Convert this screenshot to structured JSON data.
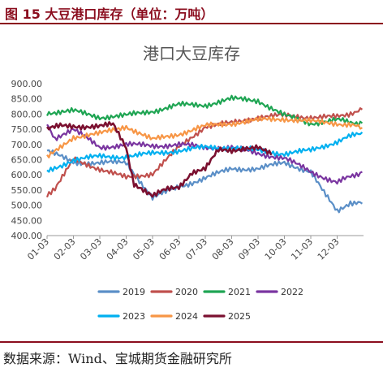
{
  "figure": {
    "title": "图 15 大豆港口库存（单位：万吨）",
    "source": "数据来源：Wind、宝城期货金融研究所"
  },
  "chart_data": {
    "type": "line",
    "title": "港口大豆库存",
    "ylim": [
      400,
      900
    ],
    "yticks": [
      "400.00",
      "450.00",
      "500.00",
      "550.00",
      "600.00",
      "650.00",
      "700.00",
      "750.00",
      "800.00",
      "850.00",
      "900.00"
    ],
    "xticks": [
      "01-03",
      "02-03",
      "03-03",
      "04-03",
      "05-03",
      "06-03",
      "07-03",
      "08-03",
      "09-03",
      "10-03",
      "11-03",
      "12-03"
    ],
    "x_start": "01-03",
    "x_end": "12-31",
    "grid": false,
    "legend_position": "bottom",
    "series": [
      {
        "name": "2019",
        "color": "#5b8fc7",
        "x": [
          0,
          1,
          2,
          3,
          4,
          5,
          6,
          7,
          8,
          9,
          10,
          10.5,
          11,
          11.5,
          11.95
        ],
        "values": [
          680,
          640,
          640,
          640,
          525,
          560,
          590,
          620,
          620,
          640,
          610,
          540,
          480,
          510,
          505
        ]
      },
      {
        "name": "2020",
        "color": "#c0504d",
        "x": [
          0,
          0.3,
          1,
          2,
          3,
          4,
          5,
          6,
          7,
          8,
          9,
          10,
          11,
          11.95
        ],
        "values": [
          535,
          550,
          650,
          620,
          590,
          605,
          690,
          760,
          770,
          790,
          795,
          790,
          790,
          815
        ]
      },
      {
        "name": "2021",
        "color": "#1fa553",
        "x": [
          0,
          1,
          2,
          3,
          4,
          5,
          6,
          7,
          8,
          9,
          10,
          11,
          11.95
        ],
        "values": [
          805,
          810,
          790,
          795,
          810,
          830,
          830,
          850,
          845,
          795,
          770,
          780,
          770
        ]
      },
      {
        "name": "2022",
        "color": "#7a35a0",
        "x": [
          0,
          0.3,
          1,
          2,
          3,
          4,
          5,
          6,
          7,
          8,
          9,
          10,
          11,
          11.95
        ],
        "values": [
          770,
          720,
          750,
          690,
          700,
          695,
          700,
          690,
          690,
          670,
          655,
          610,
          575,
          610
        ]
      },
      {
        "name": "2023",
        "color": "#00b0f0",
        "x": [
          0,
          1,
          2,
          3,
          4,
          5,
          6,
          7,
          8,
          9,
          10,
          11,
          11.95
        ],
        "values": [
          610,
          650,
          660,
          660,
          670,
          680,
          690,
          690,
          680,
          670,
          680,
          710,
          740
        ]
      },
      {
        "name": "2024",
        "color": "#f79646",
        "x": [
          0,
          1,
          2,
          3,
          4,
          5,
          6,
          7,
          8,
          9,
          10,
          11,
          11.95
        ],
        "values": [
          655,
          725,
          735,
          760,
          715,
          735,
          760,
          770,
          780,
          785,
          775,
          770,
          755
        ]
      },
      {
        "name": "2025",
        "color": "#7b1030",
        "x": [
          0,
          0.5,
          1,
          2,
          2.5,
          3,
          3.3,
          4,
          4.5,
          5,
          5.5,
          6,
          6.5,
          7,
          7.5,
          8,
          8.5
        ],
        "values": [
          750,
          760,
          760,
          760,
          765,
          690,
          570,
          530,
          550,
          560,
          610,
          620,
          680,
          680,
          690,
          690,
          665
        ]
      }
    ]
  }
}
